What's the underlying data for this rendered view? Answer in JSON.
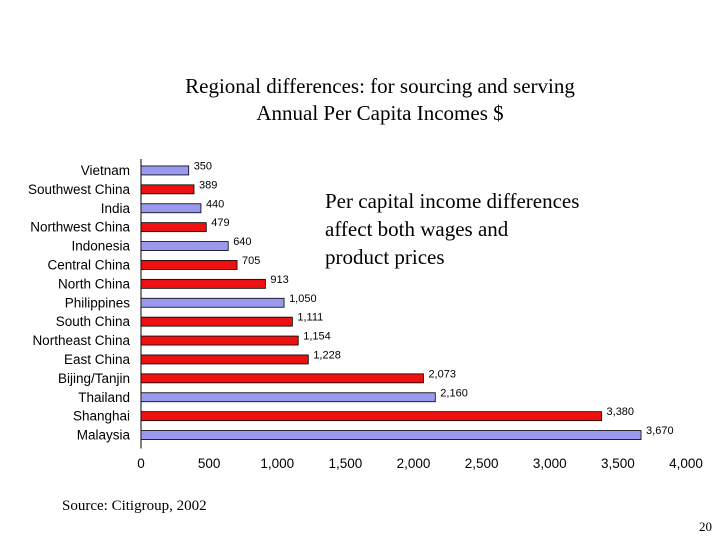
{
  "slide": {
    "title_line1": "Regional differences: for sourcing and serving",
    "title_line2": "Annual Per Capita Incomes $",
    "annotation": [
      "Per capital income differences",
      "affect both wages and",
      "product prices"
    ],
    "source": "Source: Citigroup, 2002",
    "page_number": "20"
  },
  "chart_data": {
    "type": "bar",
    "orientation": "horizontal",
    "title": "Annual Per Capita Incomes $",
    "xlabel": "",
    "ylabel": "",
    "xlim": [
      0,
      4000
    ],
    "x_ticks": [
      "0",
      "500",
      "1,000",
      "1,500",
      "2,000",
      "2,500",
      "3,000",
      "3,500",
      "4,000"
    ],
    "grid": false,
    "legend": "none",
    "colors": {
      "china_region": "#ee1111",
      "country": "#9999ee",
      "outline": "#000000"
    },
    "categories": [
      "Vietnam",
      "Southwest China",
      "India",
      "Northwest China",
      "Indonesia",
      "Central China",
      "North China",
      "Philippines",
      "South China",
      "Northeast China",
      "East China",
      "Bijing/Tanjin",
      "Thailand",
      "Shanghai",
      "Malaysia"
    ],
    "values": [
      350,
      389,
      440,
      479,
      640,
      705,
      913,
      1050,
      1111,
      1154,
      1228,
      2073,
      2160,
      3380,
      3670
    ],
    "value_labels": [
      "350",
      "389",
      "440",
      "479",
      "640",
      "705",
      "913",
      "1,050",
      "1,111",
      "1,154",
      "1,228",
      "2,073",
      "2,160",
      "3,380",
      "3,670"
    ],
    "bar_colors": [
      "country",
      "china_region",
      "country",
      "china_region",
      "country",
      "china_region",
      "china_region",
      "country",
      "china_region",
      "china_region",
      "china_region",
      "china_region",
      "country",
      "china_region",
      "country"
    ]
  }
}
